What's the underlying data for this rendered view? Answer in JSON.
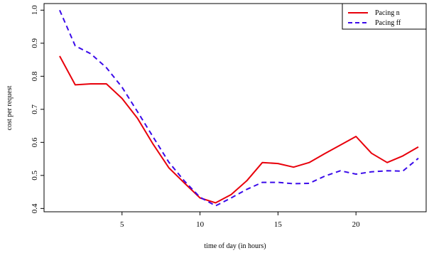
{
  "chart_data": {
    "type": "line",
    "title": "",
    "xlabel": "time of day (in hours)",
    "ylabel": "cost per request",
    "xlim": [
      0,
      24.5
    ],
    "ylim": [
      0.39,
      1.02
    ],
    "xticks": [
      5,
      10,
      15,
      20
    ],
    "yticks": [
      0.4,
      0.5,
      0.6,
      0.7,
      0.8,
      0.9,
      1.0
    ],
    "ytick_labels": [
      "0.4",
      "0.5",
      "0.6",
      "0.7",
      "0.8",
      "0.9",
      "1.0"
    ],
    "grid": false,
    "legend_position": "top-right",
    "x": [
      1,
      2,
      3,
      4,
      5,
      6,
      7,
      8,
      9,
      10,
      11,
      12,
      13,
      14,
      15,
      16,
      17,
      18,
      19,
      20,
      21,
      22,
      23,
      24
    ],
    "series": [
      {
        "name": "Pacing n",
        "color": "#e8000b",
        "dash": "solid",
        "values": [
          0.861,
          0.774,
          0.777,
          0.777,
          0.733,
          0.672,
          0.594,
          0.523,
          0.477,
          0.432,
          0.417,
          0.442,
          0.484,
          0.539,
          0.536,
          0.525,
          0.539,
          0.566,
          0.592,
          0.618,
          0.567,
          0.539,
          0.559,
          0.586
        ]
      },
      {
        "name": "Pacing ff",
        "color": "#3b0bea",
        "dash": "dashed",
        "values": [
          1.0,
          0.892,
          0.868,
          0.826,
          0.767,
          0.692,
          0.616,
          0.54,
          0.483,
          0.434,
          0.408,
          0.432,
          0.458,
          0.479,
          0.479,
          0.475,
          0.476,
          0.498,
          0.514,
          0.504,
          0.511,
          0.514,
          0.513,
          0.552
        ]
      }
    ]
  }
}
